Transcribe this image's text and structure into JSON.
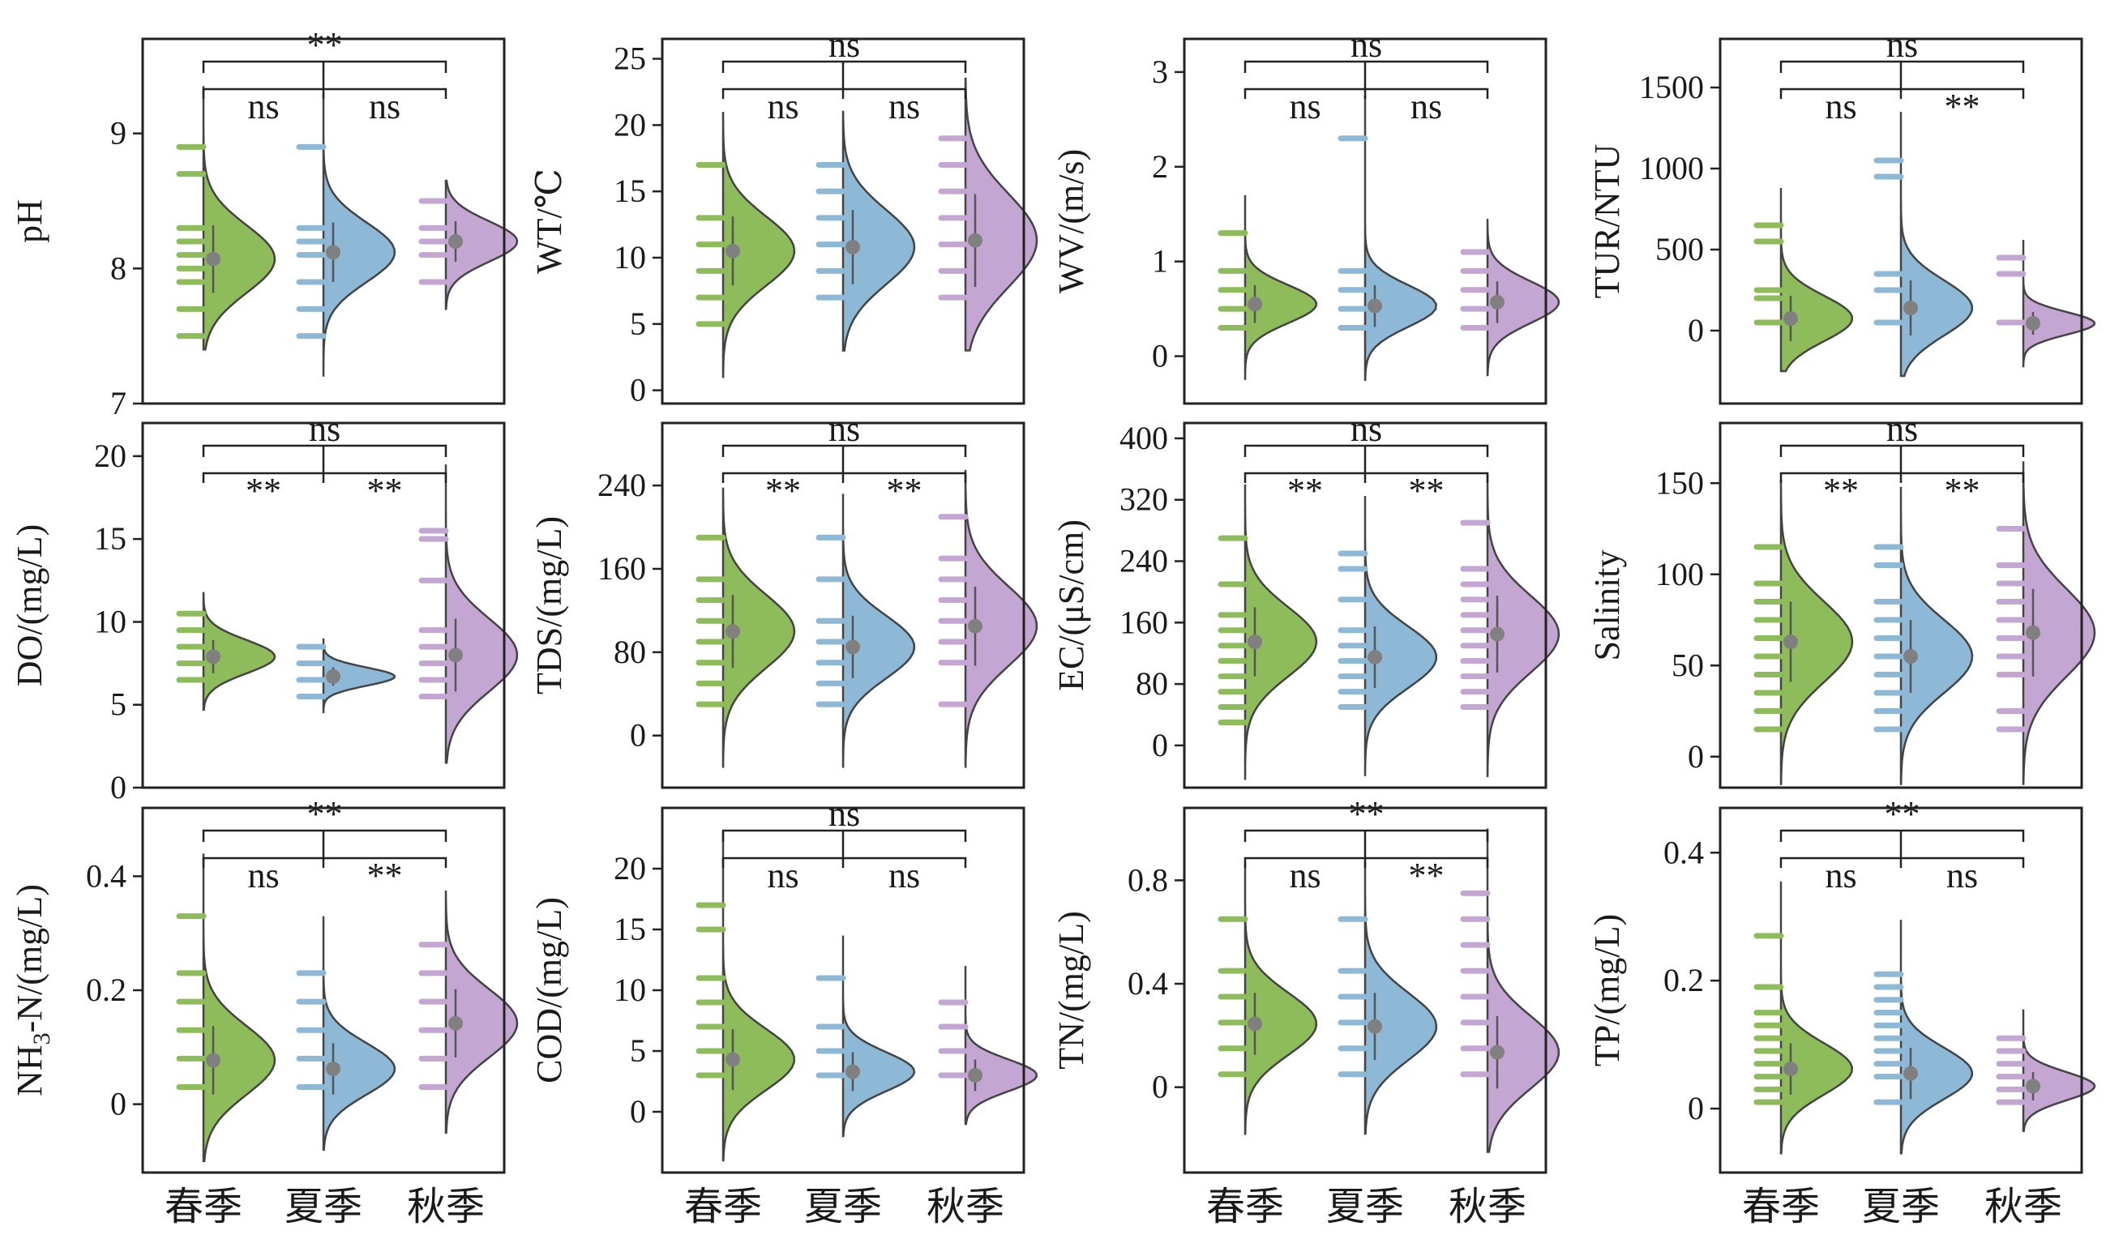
{
  "categories": [
    "春季",
    "夏季",
    "秋季"
  ],
  "colors": {
    "spring": "#8fbc5a",
    "summer": "#8db8d6",
    "autumn": "#c4a6d2",
    "mean": "#808080",
    "outline": "#444444"
  },
  "chart_data": [
    {
      "type": "violin",
      "ylabel": "pH",
      "ylim": [
        7,
        9.7
      ],
      "yticks": [
        7,
        8,
        9
      ],
      "brackets": {
        "left": "ns",
        "right": "ns",
        "top": "**"
      },
      "series": [
        {
          "category": "春季",
          "mean": 8.07,
          "sd": 0.25,
          "range": [
            7.4,
            9.35
          ],
          "obs": [
            7.5,
            7.7,
            7.9,
            8.0,
            8.1,
            8.2,
            8.3,
            8.7,
            8.9
          ]
        },
        {
          "category": "夏季",
          "mean": 8.12,
          "sd": 0.22,
          "range": [
            7.2,
            9.3
          ],
          "obs": [
            7.5,
            7.7,
            7.9,
            8.1,
            8.2,
            8.3,
            8.9
          ]
        },
        {
          "category": "秋季",
          "mean": 8.2,
          "sd": 0.15,
          "range": [
            7.7,
            8.65
          ],
          "obs": [
            7.9,
            8.1,
            8.2,
            8.3,
            8.5
          ]
        }
      ]
    },
    {
      "type": "violin",
      "ylabel": "WT/℃",
      "ylim": [
        -1,
        26.5
      ],
      "yticks": [
        0,
        5,
        10,
        15,
        20,
        25
      ],
      "brackets": {
        "left": "ns",
        "right": "ns",
        "top": "ns"
      },
      "series": [
        {
          "category": "春季",
          "mean": 10.5,
          "sd": 2.6,
          "range": [
            1,
            21
          ],
          "obs": [
            5,
            7,
            9,
            11,
            13,
            17
          ]
        },
        {
          "category": "夏季",
          "mean": 10.8,
          "sd": 2.8,
          "range": [
            3,
            21
          ],
          "obs": [
            7,
            9,
            11,
            13,
            15,
            17
          ]
        },
        {
          "category": "秋季",
          "mean": 11.3,
          "sd": 3.5,
          "range": [
            3,
            23.5
          ],
          "obs": [
            7,
            9,
            11,
            13,
            15,
            17,
            19
          ]
        }
      ]
    },
    {
      "type": "violin",
      "ylabel": "WV/(m/s)",
      "ylim": [
        -0.5,
        3.35
      ],
      "yticks": [
        0,
        1,
        2,
        3
      ],
      "brackets": {
        "left": "ns",
        "right": "ns",
        "top": "ns"
      },
      "series": [
        {
          "category": "春季",
          "mean": 0.55,
          "sd": 0.2,
          "range": [
            -0.25,
            1.7
          ],
          "obs": [
            0.3,
            0.5,
            0.7,
            0.9,
            1.3
          ]
        },
        {
          "category": "夏季",
          "mean": 0.53,
          "sd": 0.22,
          "range": [
            -0.25,
            2.75
          ],
          "obs": [
            0.3,
            0.5,
            0.7,
            0.9,
            2.3
          ]
        },
        {
          "category": "秋季",
          "mean": 0.57,
          "sd": 0.22,
          "range": [
            -0.2,
            1.45
          ],
          "obs": [
            0.3,
            0.5,
            0.7,
            0.9,
            1.1
          ]
        }
      ]
    },
    {
      "type": "violin",
      "ylabel": "TUR/NTU",
      "ylim": [
        -450,
        1800
      ],
      "yticks": [
        0,
        500,
        1000,
        1500
      ],
      "brackets": {
        "left": "ns",
        "right": "**",
        "top": "ns"
      },
      "series": [
        {
          "category": "春季",
          "mean": 75,
          "sd": 140,
          "range": [
            -250,
            880
          ],
          "obs": [
            50,
            200,
            250,
            550,
            650
          ]
        },
        {
          "category": "夏季",
          "mean": 140,
          "sd": 170,
          "range": [
            -280,
            1350
          ],
          "obs": [
            50,
            250,
            350,
            950,
            1050
          ]
        },
        {
          "category": "秋季",
          "mean": 45,
          "sd": 70,
          "range": [
            -220,
            560
          ],
          "obs": [
            50,
            350,
            450
          ]
        }
      ]
    },
    {
      "type": "violin",
      "ylabel": "DO/(mg/L)",
      "ylim": [
        0,
        22
      ],
      "yticks": [
        0,
        5,
        10,
        15,
        20
      ],
      "brackets": {
        "left": "**",
        "right": "**",
        "top": "ns"
      },
      "series": [
        {
          "category": "春季",
          "mean": 7.9,
          "sd": 1.0,
          "range": [
            4.7,
            11.8
          ],
          "obs": [
            6.5,
            7.5,
            8.5,
            9.5,
            10.5
          ]
        },
        {
          "category": "夏季",
          "mean": 6.7,
          "sd": 0.55,
          "range": [
            4.5,
            9.0
          ],
          "obs": [
            5.5,
            6.5,
            7.5,
            8.5
          ]
        },
        {
          "category": "秋季",
          "mean": 8.0,
          "sd": 2.2,
          "range": [
            1.5,
            19.5
          ],
          "obs": [
            5.5,
            6.5,
            7.5,
            8.5,
            9.5,
            12.5,
            15.0,
            15.5
          ]
        }
      ]
    },
    {
      "type": "violin",
      "ylabel": "TDS/(mg/L)",
      "ylim": [
        -50,
        300
      ],
      "yticks": [
        0,
        80,
        160,
        240
      ],
      "brackets": {
        "left": "**",
        "right": "**",
        "top": "ns"
      },
      "series": [
        {
          "category": "春季",
          "mean": 100,
          "sd": 35,
          "range": [
            -30,
            238
          ],
          "obs": [
            30,
            50,
            70,
            90,
            110,
            130,
            150,
            190
          ]
        },
        {
          "category": "夏季",
          "mean": 85,
          "sd": 30,
          "range": [
            -30,
            232
          ],
          "obs": [
            30,
            50,
            70,
            90,
            110,
            150,
            190
          ]
        },
        {
          "category": "秋季",
          "mean": 105,
          "sd": 38,
          "range": [
            -30,
            255
          ],
          "obs": [
            30,
            70,
            90,
            110,
            130,
            150,
            170,
            210
          ]
        }
      ]
    },
    {
      "type": "violin",
      "ylabel": "EC/(μS/cm)",
      "ylim": [
        -55,
        420
      ],
      "yticks": [
        0,
        80,
        160,
        240,
        320,
        400
      ],
      "brackets": {
        "left": "**",
        "right": "**",
        "top": "ns"
      },
      "series": [
        {
          "category": "春季",
          "mean": 135,
          "sd": 45,
          "range": [
            -45,
            340
          ],
          "obs": [
            30,
            50,
            70,
            90,
            110,
            130,
            150,
            170,
            210,
            270
          ]
        },
        {
          "category": "夏季",
          "mean": 115,
          "sd": 40,
          "range": [
            -40,
            325
          ],
          "obs": [
            50,
            70,
            90,
            110,
            130,
            150,
            190,
            230,
            250
          ]
        },
        {
          "category": "秋季",
          "mean": 145,
          "sd": 50,
          "range": [
            -40,
            355
          ],
          "obs": [
            50,
            70,
            90,
            110,
            130,
            150,
            170,
            190,
            210,
            230,
            290
          ]
        }
      ]
    },
    {
      "type": "violin",
      "ylabel": "Salinity",
      "ylim": [
        -17,
        183
      ],
      "yticks": [
        0,
        50,
        100,
        150
      ],
      "brackets": {
        "left": "**",
        "right": "**",
        "top": "ns"
      },
      "series": [
        {
          "category": "春季",
          "mean": 63,
          "sd": 22,
          "range": [
            -15,
            152
          ],
          "obs": [
            15,
            25,
            35,
            45,
            55,
            65,
            75,
            85,
            95,
            115
          ]
        },
        {
          "category": "夏季",
          "mean": 55,
          "sd": 20,
          "range": [
            -15,
            148
          ],
          "obs": [
            15,
            25,
            35,
            45,
            55,
            65,
            75,
            85,
            105,
            115
          ]
        },
        {
          "category": "秋季",
          "mean": 68,
          "sd": 24,
          "range": [
            -15,
            162
          ],
          "obs": [
            15,
            25,
            45,
            55,
            65,
            75,
            85,
            95,
            105,
            125
          ]
        }
      ]
    },
    {
      "type": "violin",
      "ylabel": "NH3-N/(mg/L)",
      "ylabel_parts": [
        "NH",
        "3",
        "-N/(mg/L)"
      ],
      "ylim": [
        -0.12,
        0.52
      ],
      "yticks": [
        0,
        0.2,
        0.4
      ],
      "brackets": {
        "left": "ns",
        "right": "**",
        "top": "**"
      },
      "series": [
        {
          "category": "春季",
          "mean": 0.077,
          "sd": 0.06,
          "range": [
            -0.1,
            0.44
          ],
          "obs": [
            0.03,
            0.08,
            0.13,
            0.18,
            0.23,
            0.33
          ]
        },
        {
          "category": "夏季",
          "mean": 0.062,
          "sd": 0.045,
          "range": [
            -0.08,
            0.33
          ],
          "obs": [
            0.03,
            0.08,
            0.13,
            0.18,
            0.23
          ]
        },
        {
          "category": "秋季",
          "mean": 0.142,
          "sd": 0.06,
          "range": [
            -0.05,
            0.375
          ],
          "obs": [
            0.03,
            0.08,
            0.13,
            0.18,
            0.23,
            0.28
          ]
        }
      ]
    },
    {
      "type": "violin",
      "ylabel": "COD/(mg/L)",
      "ylim": [
        -5,
        25
      ],
      "yticks": [
        0,
        5,
        10,
        15,
        20
      ],
      "brackets": {
        "left": "ns",
        "right": "ns",
        "top": "ns"
      },
      "series": [
        {
          "category": "春季",
          "mean": 4.3,
          "sd": 2.5,
          "range": [
            -4,
            23
          ],
          "obs": [
            3,
            5,
            7,
            9,
            11,
            15,
            17
          ]
        },
        {
          "category": "夏季",
          "mean": 3.3,
          "sd": 1.6,
          "range": [
            -2,
            14.5
          ],
          "obs": [
            3,
            5,
            7,
            11
          ]
        },
        {
          "category": "秋季",
          "mean": 3.0,
          "sd": 1.3,
          "range": [
            -1,
            12
          ],
          "obs": [
            3,
            5,
            7,
            9
          ]
        }
      ]
    },
    {
      "type": "violin",
      "ylabel": "TN/(mg/L)",
      "ylim": [
        -0.33,
        1.08
      ],
      "yticks": [
        0,
        0.4,
        0.8
      ],
      "brackets": {
        "left": "ns",
        "right": "**",
        "top": "**"
      },
      "series": [
        {
          "category": "春季",
          "mean": 0.245,
          "sd": 0.12,
          "range": [
            -0.18,
            0.87
          ],
          "obs": [
            0.05,
            0.15,
            0.25,
            0.35,
            0.45,
            0.65
          ]
        },
        {
          "category": "夏季",
          "mean": 0.235,
          "sd": 0.13,
          "range": [
            -0.18,
            0.87
          ],
          "obs": [
            0.05,
            0.15,
            0.25,
            0.35,
            0.45,
            0.65
          ]
        },
        {
          "category": "秋季",
          "mean": 0.135,
          "sd": 0.14,
          "range": [
            -0.25,
            1.0
          ],
          "obs": [
            0.05,
            0.15,
            0.25,
            0.35,
            0.45,
            0.55,
            0.65,
            0.75
          ]
        }
      ]
    },
    {
      "type": "violin",
      "ylabel": "TP/(mg/L)",
      "ylim": [
        -0.1,
        0.47
      ],
      "yticks": [
        0,
        0.2,
        0.4
      ],
      "brackets": {
        "left": "ns",
        "right": "ns",
        "top": "**"
      },
      "series": [
        {
          "category": "春季",
          "mean": 0.062,
          "sd": 0.04,
          "range": [
            -0.07,
            0.355
          ],
          "obs": [
            0.01,
            0.03,
            0.05,
            0.07,
            0.09,
            0.11,
            0.13,
            0.15,
            0.19,
            0.27
          ]
        },
        {
          "category": "夏季",
          "mean": 0.055,
          "sd": 0.04,
          "range": [
            -0.07,
            0.295
          ],
          "obs": [
            0.01,
            0.05,
            0.07,
            0.09,
            0.11,
            0.13,
            0.15,
            0.17,
            0.19,
            0.21
          ]
        },
        {
          "category": "秋季",
          "mean": 0.035,
          "sd": 0.022,
          "range": [
            -0.035,
            0.155
          ],
          "obs": [
            0.01,
            0.03,
            0.05,
            0.07,
            0.09,
            0.11
          ]
        }
      ]
    }
  ]
}
